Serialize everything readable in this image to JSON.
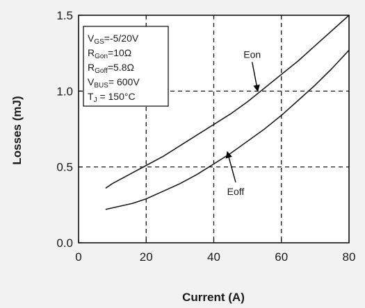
{
  "chart_data": {
    "type": "line",
    "title": "",
    "xlabel": "Current (A)",
    "ylabel": "Losses (mJ)",
    "xlim": [
      0,
      80
    ],
    "ylim": [
      0,
      1.5
    ],
    "x_ticks": [
      "0",
      "20",
      "40",
      "60",
      "80"
    ],
    "y_ticks": [
      "0.0",
      "0.5",
      "1.0",
      "1.5"
    ],
    "x_tick_values": [
      0,
      20,
      40,
      60,
      80
    ],
    "y_tick_values": [
      0,
      0.5,
      1.0,
      1.5
    ],
    "grid": "dashed",
    "series": [
      {
        "name": "Eon",
        "x": [
          8,
          10,
          15,
          20,
          25,
          30,
          35,
          40,
          45,
          50,
          55,
          60,
          65,
          70,
          75,
          80
        ],
        "y": [
          0.36,
          0.39,
          0.45,
          0.51,
          0.57,
          0.64,
          0.71,
          0.78,
          0.85,
          0.93,
          1.02,
          1.11,
          1.2,
          1.3,
          1.4,
          1.5
        ]
      },
      {
        "name": "Eoff",
        "x": [
          8,
          12,
          16,
          20,
          25,
          30,
          35,
          40,
          45,
          50,
          55,
          60,
          65,
          70,
          75,
          80
        ],
        "y": [
          0.22,
          0.24,
          0.26,
          0.29,
          0.34,
          0.39,
          0.45,
          0.52,
          0.59,
          0.67,
          0.75,
          0.84,
          0.94,
          1.04,
          1.15,
          1.27
        ]
      }
    ],
    "annotations": [
      {
        "text": "Eon",
        "series": "Eon",
        "at": [
          53,
          1.0
        ]
      },
      {
        "text": "Eoff",
        "series": "Eoff",
        "at": [
          44,
          0.6
        ]
      }
    ],
    "conditions": [
      {
        "main": "V",
        "sub": "GS",
        "rest": "=-5/20V"
      },
      {
        "main": "R",
        "sub": "Gon",
        "rest": "=10Ω"
      },
      {
        "main": "R",
        "sub": "Goff",
        "rest": "=5.8Ω"
      },
      {
        "main": "V",
        "sub": "BUS",
        "rest": "= 600V"
      },
      {
        "main": "T",
        "sub": "J",
        "rest": " = 150°C"
      }
    ]
  }
}
